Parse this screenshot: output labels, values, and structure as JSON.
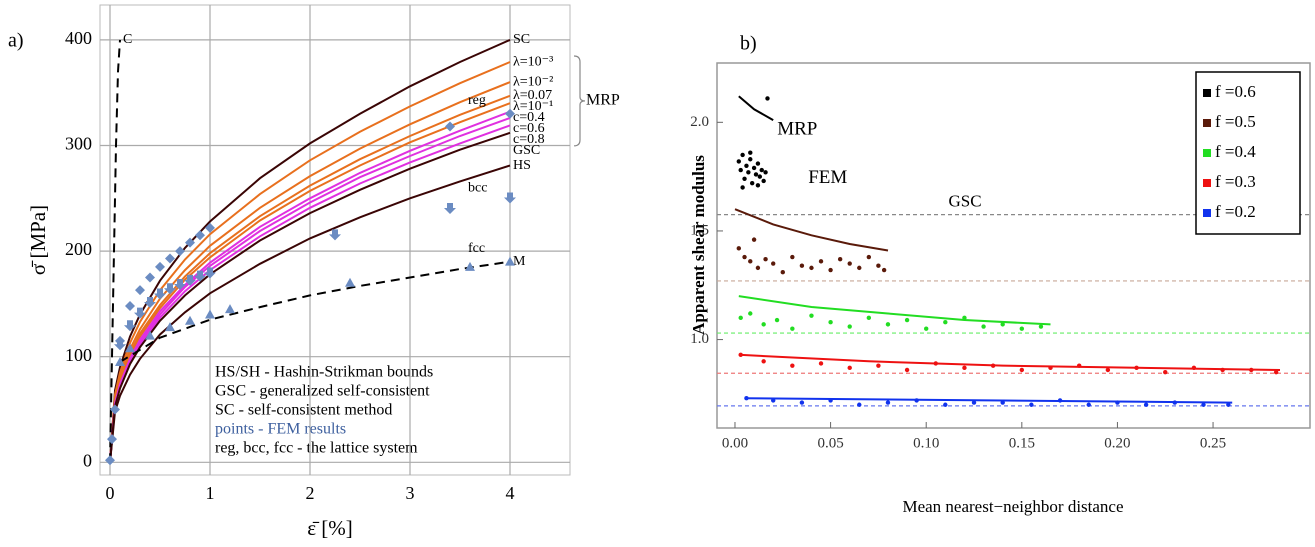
{
  "chart_data": [
    {
      "type": "line",
      "panel_label": "a)",
      "xlabel": "ε̄    [%]",
      "ylabel": "σ̄    [MPa]",
      "xlim": [
        -0.1,
        4.6
      ],
      "ylim": [
        -12,
        433
      ],
      "xticks": [
        0,
        1,
        2,
        3,
        4
      ],
      "yticks": [
        0,
        100,
        200,
        300,
        400
      ],
      "grid": true,
      "x": [
        0,
        0.05,
        0.1,
        0.2,
        0.3,
        0.5,
        0.75,
        1,
        1.5,
        2,
        2.5,
        3,
        3.5,
        4
      ],
      "brace_label": "MRP",
      "notes": [
        "HS/SH - Hashin-Strikman bounds",
        "GSC - generalized self-consistent",
        "SC - self-consistent method",
        "points - FEM results",
        "reg, bcc, fcc - the lattice system"
      ],
      "series": [
        {
          "name": "SC",
          "color": "#3a0505",
          "values": [
            0,
            68,
            90,
            119,
            140,
            172,
            203,
            228,
            269,
            302,
            330,
            356,
            379,
            400
          ]
        },
        {
          "name": "λ=10⁻³",
          "color": "#e8701e",
          "values": [
            0,
            64,
            85,
            113,
            133,
            163,
            192,
            216,
            254,
            286,
            313,
            337,
            359,
            379
          ]
        },
        {
          "name": "λ=10⁻²",
          "color": "#e8701e",
          "values": [
            0,
            61,
            81,
            107,
            126,
            155,
            182,
            205,
            241,
            271,
            297,
            320,
            341,
            360
          ]
        },
        {
          "name": "λ=0.07",
          "color": "#e8701e",
          "values": [
            0,
            59,
            78,
            103,
            122,
            149,
            176,
            198,
            233,
            262,
            287,
            309,
            329,
            347
          ]
        },
        {
          "name": "λ=10⁻¹",
          "color": "#e8701e",
          "values": [
            0,
            58,
            76,
            101,
            119,
            146,
            173,
            194,
            229,
            257,
            281,
            303,
            322,
            340
          ]
        },
        {
          "name": "c=0.4",
          "color": "#e030e0",
          "values": [
            0,
            56,
            74,
            98,
            116,
            143,
            168,
            189,
            223,
            250,
            274,
            295,
            314,
            332
          ]
        },
        {
          "name": "c=0.6",
          "color": "#e030e0",
          "values": [
            0,
            55,
            73,
            97,
            114,
            140,
            166,
            186,
            219,
            246,
            270,
            290,
            309,
            326
          ]
        },
        {
          "name": "c=0.8",
          "color": "#e030e0",
          "values": [
            0,
            54,
            72,
            95,
            112,
            137,
            162,
            182,
            214,
            241,
            264,
            284,
            302,
            319
          ]
        },
        {
          "name": "GSC",
          "color": "#3a0505",
          "values": [
            0,
            53,
            70,
            93,
            109,
            134,
            158,
            178,
            210,
            236,
            258,
            278,
            296,
            312
          ]
        },
        {
          "name": "HS",
          "color": "#3a0505",
          "values": [
            0,
            48,
            63,
            83,
            98,
            121,
            142,
            160,
            188,
            212,
            232,
            250,
            266,
            281
          ]
        },
        {
          "name": "M",
          "color": "#000000",
          "dashed": true,
          "x": [
            0.1,
            0.5,
            1,
            1.5,
            2,
            2.5,
            3,
            3.5,
            4
          ],
          "values": [
            95,
            118,
            135,
            147,
            158,
            167,
            175,
            183,
            190
          ]
        },
        {
          "name": "C",
          "color": "#000000",
          "dashed": true,
          "x": [
            0,
            0.03,
            0.06,
            0.08,
            0.1
          ],
          "values": [
            0,
            150,
            300,
            370,
            400
          ]
        },
        {
          "name": "reg",
          "color": "#6b8cc2",
          "marker": "diamond",
          "x": [
            0,
            0.02,
            0.05,
            0.1,
            0.2,
            0.3,
            0.4,
            0.5,
            0.6,
            0.7,
            0.8,
            0.9,
            1.0,
            3.4,
            4
          ],
          "values": [
            2,
            22,
            50,
            115,
            148,
            163,
            175,
            185,
            193,
            200,
            208,
            215,
            222,
            318,
            330
          ]
        },
        {
          "name": "bcc",
          "color": "#6b8cc2",
          "marker": "arrow",
          "x": [
            0.1,
            0.2,
            0.3,
            0.4,
            0.5,
            0.6,
            0.7,
            0.8,
            0.9,
            1.0,
            2.25,
            3.4,
            4
          ],
          "values": [
            108,
            126,
            138,
            148,
            156,
            161,
            165,
            169,
            173,
            176,
            212,
            237,
            247
          ]
        },
        {
          "name": "fcc",
          "color": "#6b8cc2",
          "marker": "triangle",
          "x": [
            0.1,
            0.2,
            0.4,
            0.6,
            0.8,
            1.0,
            1.2,
            2.4,
            3.6,
            4
          ],
          "values": [
            95,
            108,
            120,
            128,
            134,
            140,
            145,
            170,
            185,
            190
          ]
        }
      ]
    },
    {
      "type": "scatter",
      "panel_label": "b)",
      "xlabel": "Mean nearest−neighbor distance",
      "ylabel": "Apparent shear modulus",
      "xlim": [
        -0.0094,
        0.3007
      ],
      "ylim": [
        0.593,
        2.273
      ],
      "xticks": [
        {
          "value": 0,
          "label": "0.00"
        },
        {
          "value": 0.05,
          "label": "0.05"
        },
        {
          "value": 0.1,
          "label": "0.10"
        },
        {
          "value": 0.15,
          "label": "0.15"
        },
        {
          "value": 0.2,
          "label": "0.20"
        },
        {
          "value": 0.25,
          "label": "0.25"
        }
      ],
      "yticks": [
        {
          "value": 1,
          "label": "1.0"
        },
        {
          "value": 1.5,
          "label": "1.5"
        },
        {
          "value": 2,
          "label": "2.0"
        }
      ],
      "grid": false,
      "legend": "upper right",
      "series": [
        {
          "name": "f =0.6",
          "color": "#000000",
          "level_color": "#888888",
          "fit_label": "MRP",
          "points_label": "FEM",
          "level_label": "GSC",
          "x": [
            0.002,
            0.003,
            0.004,
            0.005,
            0.006,
            0.007,
            0.008,
            0.009,
            0.01,
            0.011,
            0.012,
            0.013,
            0.014,
            0.015,
            0.016,
            0.017,
            0.004,
            0.008,
            0.012
          ],
          "values": [
            1.82,
            1.78,
            1.85,
            1.74,
            1.8,
            1.77,
            1.83,
            1.72,
            1.79,
            1.76,
            1.81,
            1.75,
            1.78,
            1.73,
            1.77,
            2.11,
            1.7,
            1.86,
            1.71
          ],
          "fit_x": [
            0.002,
            0.01,
            0.02
          ],
          "fit_values": [
            2.12,
            2.06,
            2.01
          ],
          "level": 1.575
        },
        {
          "name": "f =0.5",
          "color": "#5a1a0a",
          "level_color": "#c8a898",
          "x": [
            0.002,
            0.005,
            0.008,
            0.012,
            0.016,
            0.02,
            0.025,
            0.03,
            0.035,
            0.04,
            0.045,
            0.05,
            0.055,
            0.06,
            0.065,
            0.07,
            0.075,
            0.078,
            0.01
          ],
          "values": [
            1.42,
            1.38,
            1.36,
            1.33,
            1.37,
            1.35,
            1.31,
            1.38,
            1.34,
            1.33,
            1.36,
            1.32,
            1.37,
            1.35,
            1.33,
            1.38,
            1.34,
            1.32,
            1.46
          ],
          "fit_x": [
            0,
            0.02,
            0.04,
            0.06,
            0.08
          ],
          "fit_values": [
            1.6,
            1.53,
            1.48,
            1.44,
            1.41
          ],
          "level": 1.27
        },
        {
          "name": "f =0.4",
          "color": "#22dd22",
          "level_color": "#66ee66",
          "x": [
            0.003,
            0.008,
            0.015,
            0.022,
            0.03,
            0.04,
            0.05,
            0.06,
            0.07,
            0.08,
            0.09,
            0.1,
            0.11,
            0.12,
            0.13,
            0.14,
            0.15,
            0.16
          ],
          "values": [
            1.1,
            1.12,
            1.07,
            1.09,
            1.05,
            1.11,
            1.08,
            1.06,
            1.1,
            1.07,
            1.09,
            1.05,
            1.08,
            1.1,
            1.06,
            1.07,
            1.05,
            1.06
          ],
          "fit_x": [
            0.002,
            0.04,
            0.08,
            0.12,
            0.165
          ],
          "fit_values": [
            1.2,
            1.15,
            1.12,
            1.09,
            1.07
          ],
          "level": 1.03
        },
        {
          "name": "f =0.3",
          "color": "#ee1111",
          "level_color": "#ee7777",
          "x": [
            0.003,
            0.015,
            0.03,
            0.045,
            0.06,
            0.075,
            0.09,
            0.105,
            0.12,
            0.135,
            0.15,
            0.165,
            0.18,
            0.195,
            0.21,
            0.225,
            0.24,
            0.255,
            0.27,
            0.283
          ],
          "values": [
            0.93,
            0.9,
            0.88,
            0.89,
            0.87,
            0.88,
            0.86,
            0.89,
            0.87,
            0.88,
            0.86,
            0.87,
            0.88,
            0.86,
            0.87,
            0.85,
            0.87,
            0.86,
            0.86,
            0.85
          ],
          "fit_x": [
            0.002,
            0.07,
            0.14,
            0.21,
            0.285
          ],
          "fit_values": [
            0.93,
            0.9,
            0.88,
            0.87,
            0.86
          ],
          "level": 0.845
        },
        {
          "name": "f =0.2",
          "color": "#1133ee",
          "level_color": "#6677ee",
          "x": [
            0.006,
            0.02,
            0.035,
            0.05,
            0.065,
            0.08,
            0.095,
            0.11,
            0.125,
            0.14,
            0.155,
            0.17,
            0.185,
            0.2,
            0.215,
            0.23,
            0.245,
            0.258
          ],
          "values": [
            0.73,
            0.72,
            0.71,
            0.72,
            0.7,
            0.71,
            0.72,
            0.7,
            0.71,
            0.71,
            0.7,
            0.72,
            0.7,
            0.71,
            0.7,
            0.71,
            0.7,
            0.7
          ],
          "fit_x": [
            0.005,
            0.26
          ],
          "fit_values": [
            0.73,
            0.71
          ],
          "level": 0.695
        }
      ]
    }
  ]
}
